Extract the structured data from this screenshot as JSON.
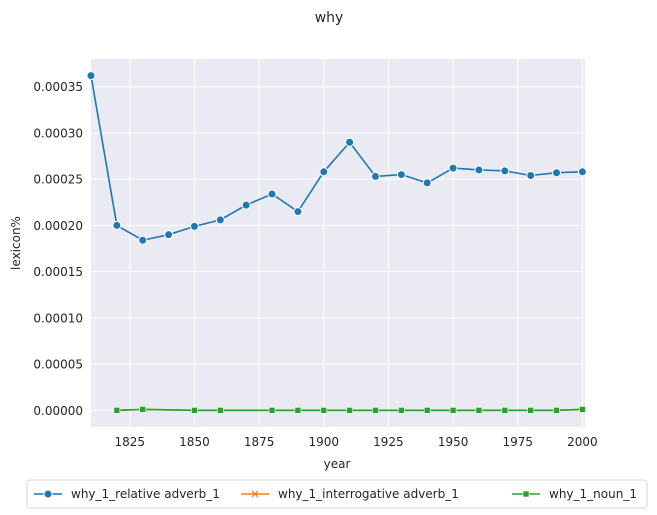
{
  "chart_data": {
    "type": "line",
    "title": "why",
    "xlabel": "year",
    "ylabel": "lexicon%",
    "xlim": [
      1810,
      2001
    ],
    "ylim": [
      -1.8e-05,
      0.00038
    ],
    "xticks": [
      1825,
      1850,
      1875,
      1900,
      1925,
      1950,
      1975,
      2000
    ],
    "yticks": [
      0.0,
      5e-05,
      0.0001,
      0.00015,
      0.0002,
      0.00025,
      0.0003,
      0.00035
    ],
    "ytick_labels": [
      "0.00000",
      "0.00005",
      "0.00010",
      "0.00015",
      "0.00020",
      "0.00025",
      "0.00030",
      "0.00035"
    ],
    "grid": true,
    "legend_position": "below",
    "series": [
      {
        "name": "why_1_relative adverb_1",
        "color": "#1f77b4",
        "marker": "circle",
        "x": [
          1810,
          1820,
          1830,
          1840,
          1850,
          1860,
          1870,
          1880,
          1890,
          1900,
          1910,
          1920,
          1930,
          1940,
          1950,
          1960,
          1970,
          1980,
          1990,
          2000
        ],
        "y": [
          0.000362,
          0.0002,
          0.000184,
          0.00019,
          0.000199,
          0.000206,
          0.000222,
          0.000234,
          0.000215,
          0.000258,
          0.00029,
          0.000253,
          0.000255,
          0.000246,
          0.000262,
          0.00026,
          0.000259,
          0.000254,
          0.000257,
          0.000258
        ]
      },
      {
        "name": "why_1_interrogative adverb_1",
        "color": "#ff7f0e",
        "marker": "x",
        "x": [
          1820,
          1830,
          1850,
          1860,
          1880,
          1890,
          1900,
          1910,
          1920,
          1930,
          1940,
          1950,
          1960,
          1970,
          1980,
          1990,
          2000
        ],
        "y": [
          0.0,
          1e-06,
          0.0,
          0.0,
          0.0,
          0.0,
          0.0,
          0.0,
          0.0,
          0.0,
          0.0,
          0.0,
          0.0,
          0.0,
          0.0,
          0.0,
          1e-06
        ]
      },
      {
        "name": "why_1_noun_1",
        "color": "#2ca02c",
        "marker": "square",
        "x": [
          1820,
          1830,
          1850,
          1860,
          1880,
          1890,
          1900,
          1910,
          1920,
          1930,
          1940,
          1950,
          1960,
          1970,
          1980,
          1990,
          2000
        ],
        "y": [
          0.0,
          1e-06,
          0.0,
          0.0,
          0.0,
          0.0,
          0.0,
          0.0,
          0.0,
          0.0,
          0.0,
          0.0,
          0.0,
          0.0,
          0.0,
          0.0,
          1e-06
        ]
      }
    ]
  }
}
